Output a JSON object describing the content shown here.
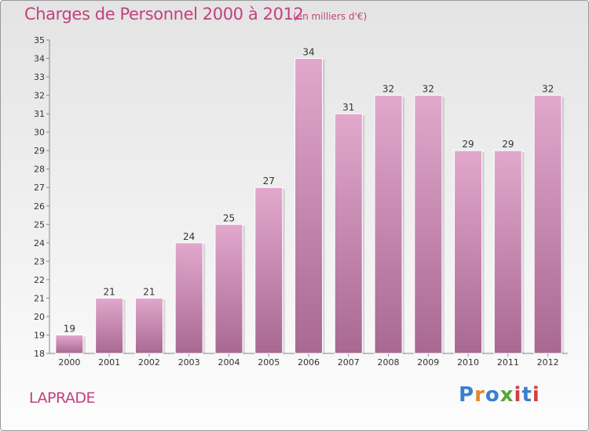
{
  "title": "Charges de Personnel 2000 à 2012",
  "subtitle": "(en milliers d'€)",
  "location": "LAPRADE",
  "logo": {
    "text": "Proxiti",
    "letter_colors": [
      "#3a7fd1",
      "#e8862a",
      "#3a7fd1",
      "#55a83a",
      "#d63f3f",
      "#3a7fd1",
      "#d63f3f"
    ]
  },
  "colors": {
    "bar_top": "#e2a8cc",
    "bar_bottom": "#a86892",
    "text_accent": "#c2417e"
  },
  "chart_data": {
    "type": "bar",
    "title": "Charges de Personnel 2000 à 2012",
    "subtitle": "(en milliers d'€)",
    "categories": [
      "2000",
      "2001",
      "2002",
      "2003",
      "2004",
      "2005",
      "2006",
      "2007",
      "2008",
      "2009",
      "2010",
      "2011",
      "2012"
    ],
    "values": [
      19,
      21,
      21,
      24,
      25,
      27,
      34,
      31,
      32,
      32,
      29,
      29,
      32
    ],
    "ylim": [
      18,
      35
    ],
    "yticks": [
      18,
      19,
      20,
      21,
      22,
      23,
      24,
      25,
      26,
      27,
      28,
      29,
      30,
      31,
      32,
      33,
      34,
      35
    ],
    "grid": false
  }
}
